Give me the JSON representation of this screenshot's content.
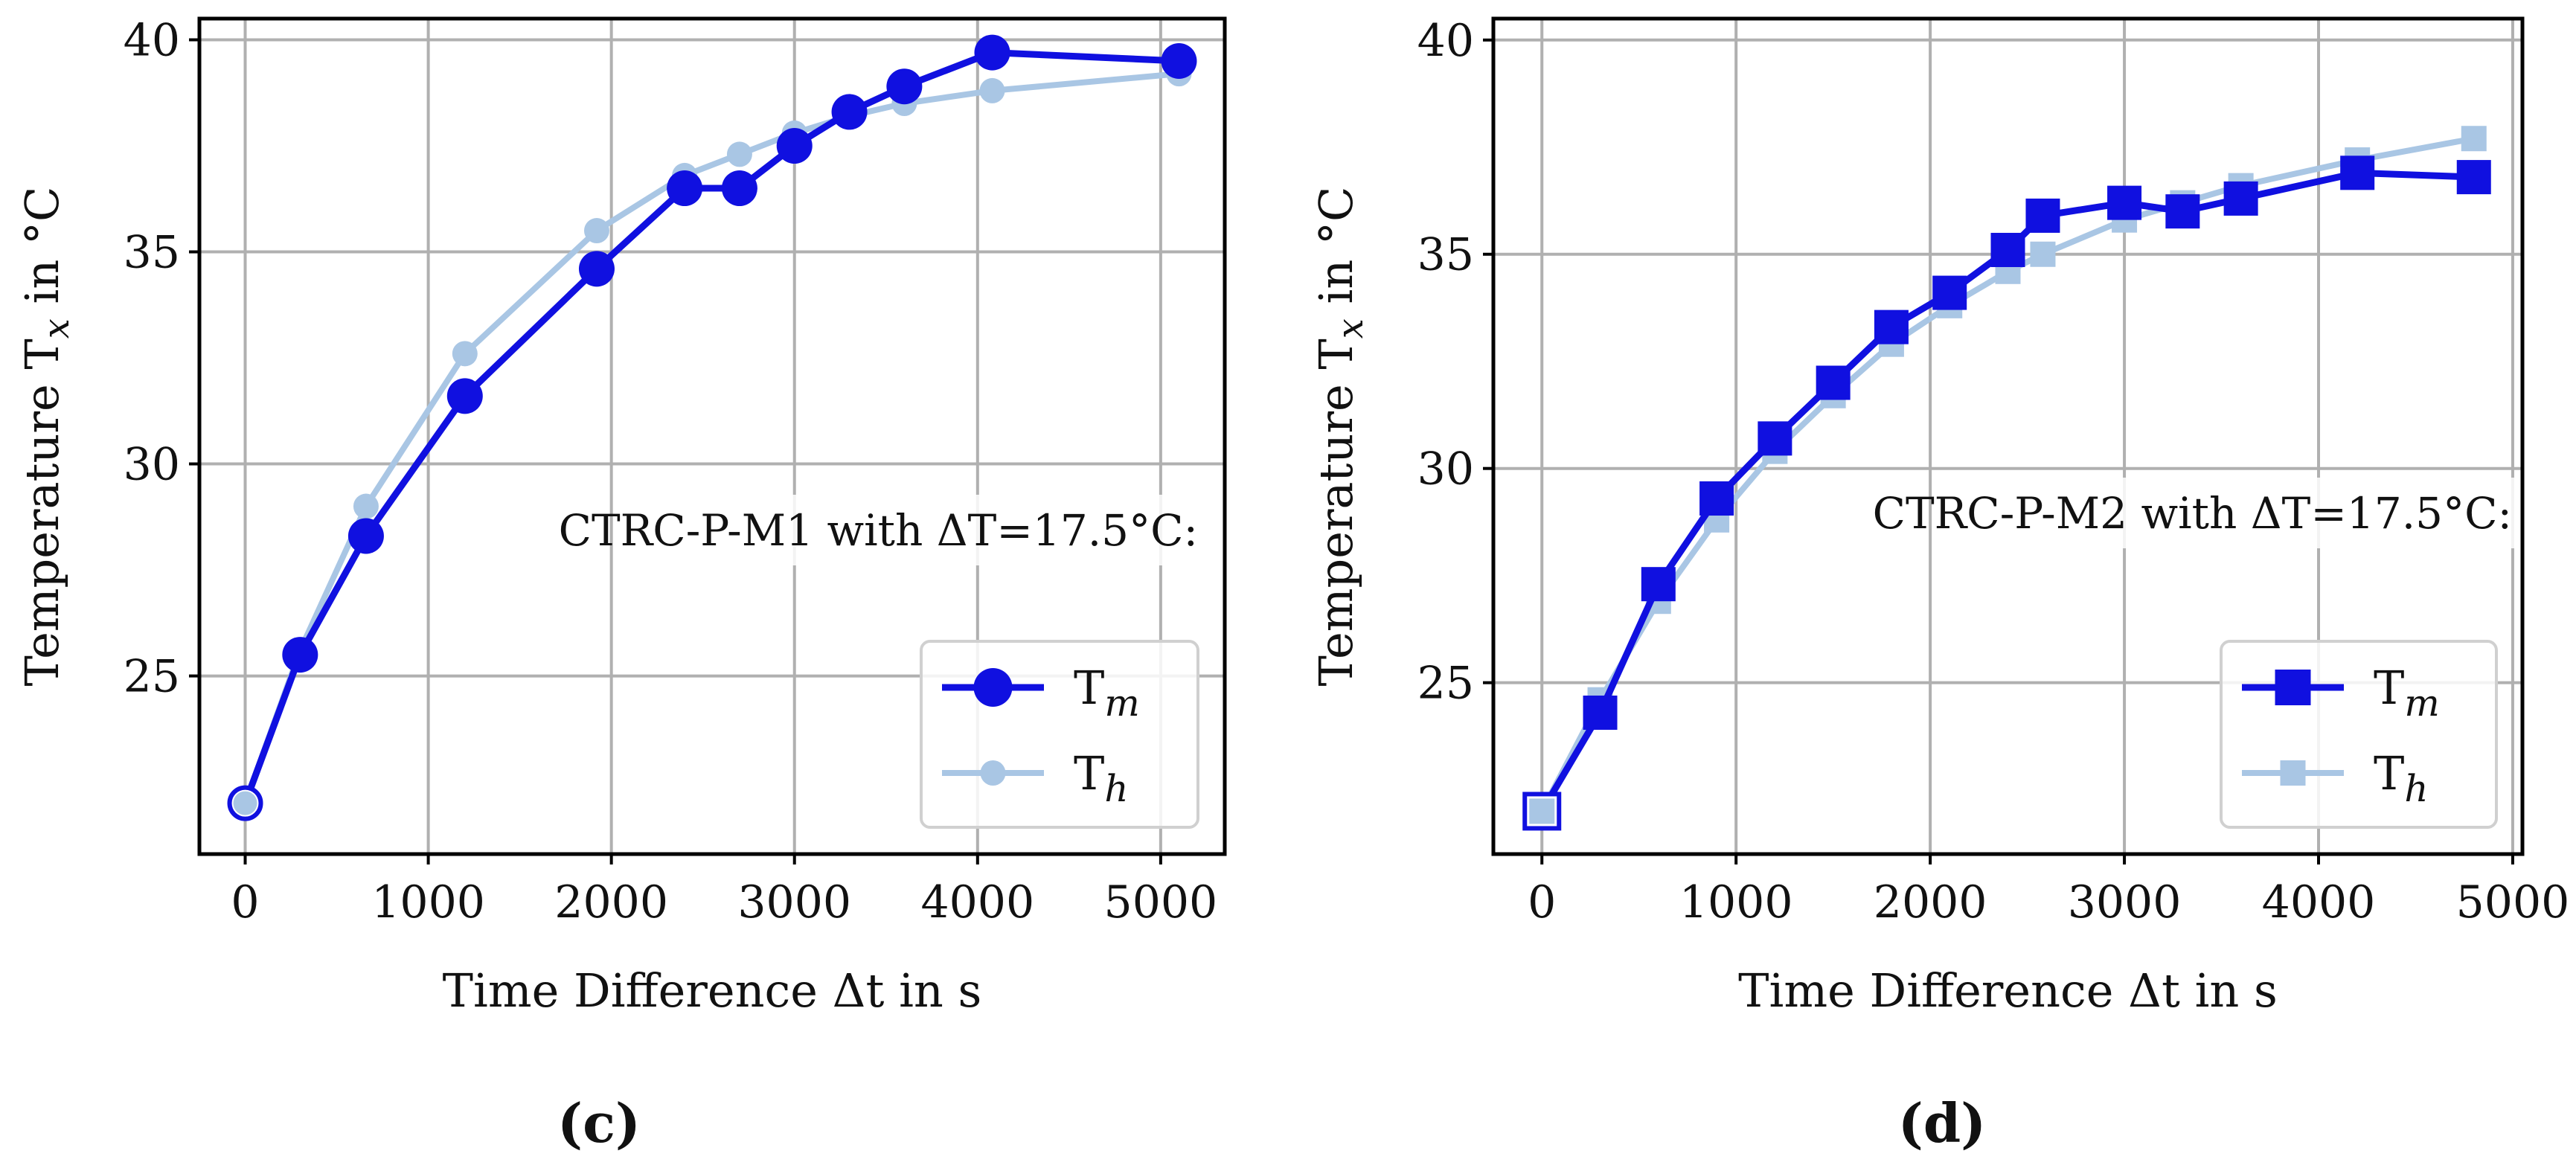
{
  "colors": {
    "Tm": "#1010e0",
    "Th": "#a9c6e4",
    "grid": "#b0b0b0"
  },
  "chart_data": [
    {
      "type": "line",
      "panel": "c",
      "caption": "(c)",
      "annotation": "CTRC-P-M1 with ΔT=17.5°C:",
      "xlabel": "Time Difference Δt in s",
      "ylabel": "Temperature Tx in °C",
      "ylabel_main": "Temperature T",
      "ylabel_sub": "x",
      "ylabel_rest": " in °C",
      "xlim": [
        -250,
        5350
      ],
      "ylim": [
        20.8,
        40.5
      ],
      "xticks": [
        0,
        1000,
        2000,
        3000,
        4000,
        5000
      ],
      "xtick_labels": [
        "0",
        "1000",
        "2000",
        "3000",
        "4000",
        "5000"
      ],
      "yticks": [
        25,
        30,
        35,
        40
      ],
      "ytick_labels": [
        "25",
        "30",
        "35",
        "40"
      ],
      "grid": true,
      "legend_position": "bottom-right",
      "marker": "circle",
      "series": [
        {
          "name": "Tm",
          "label_main": "T",
          "label_sub": "m",
          "x": [
            0,
            300,
            660,
            1200,
            1920,
            2400,
            2700,
            3000,
            3300,
            3600,
            4080,
            5100
          ],
          "y": [
            22.0,
            25.5,
            28.3,
            31.6,
            34.6,
            36.5,
            36.5,
            37.5,
            38.3,
            38.9,
            39.7,
            39.5
          ]
        },
        {
          "name": "Th",
          "label_main": "T",
          "label_sub": "h",
          "x": [
            0,
            300,
            660,
            1200,
            1920,
            2400,
            2700,
            3000,
            3300,
            3600,
            4080,
            5100
          ],
          "y": [
            22.0,
            25.6,
            29.0,
            32.6,
            35.5,
            36.8,
            37.3,
            37.8,
            38.2,
            38.5,
            38.8,
            39.2
          ]
        }
      ]
    },
    {
      "type": "line",
      "panel": "d",
      "caption": "(d)",
      "annotation": "CTRC-P-M2 with ΔT=17.5°C:",
      "xlabel": "Time Difference Δt in s",
      "ylabel": "Temperature Tx in °C",
      "ylabel_main": "Temperature T",
      "ylabel_sub": "x",
      "ylabel_rest": " in °C",
      "xlim": [
        -250,
        5050
      ],
      "ylim": [
        21.0,
        40.5
      ],
      "xticks": [
        0,
        1000,
        2000,
        3000,
        4000,
        5000
      ],
      "xtick_labels": [
        "0",
        "1000",
        "2000",
        "3000",
        "4000",
        "5000"
      ],
      "yticks": [
        25,
        30,
        35,
        40
      ],
      "ytick_labels": [
        "25",
        "30",
        "35",
        "40"
      ],
      "grid": true,
      "legend_position": "bottom-right",
      "marker": "square",
      "series": [
        {
          "name": "Tm",
          "label_main": "T",
          "label_sub": "m",
          "x": [
            0,
            300,
            600,
            900,
            1200,
            1500,
            1800,
            2100,
            2400,
            2580,
            3000,
            3300,
            3600,
            4200,
            4800
          ],
          "y": [
            22.0,
            24.3,
            27.3,
            29.3,
            30.7,
            32.0,
            33.3,
            34.1,
            35.1,
            35.9,
            36.2,
            36.0,
            36.3,
            36.9,
            36.8
          ]
        },
        {
          "name": "Th",
          "label_main": "T",
          "label_sub": "h",
          "x": [
            0,
            300,
            600,
            900,
            1200,
            1500,
            1800,
            2100,
            2400,
            2580,
            3000,
            3300,
            3600,
            4200,
            4800
          ],
          "y": [
            22.0,
            24.6,
            26.9,
            28.8,
            30.4,
            31.7,
            32.9,
            33.8,
            34.6,
            35.0,
            35.8,
            36.2,
            36.6,
            37.2,
            37.7
          ]
        }
      ]
    }
  ]
}
